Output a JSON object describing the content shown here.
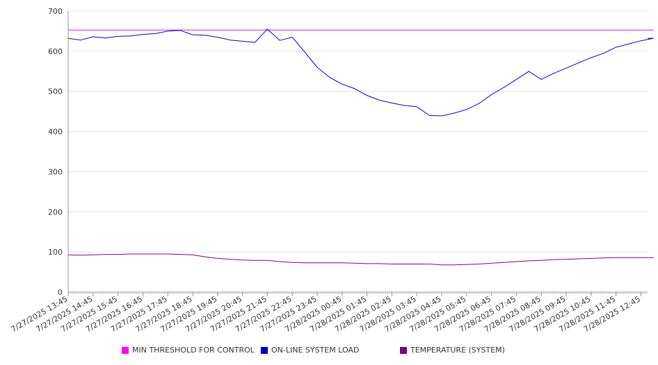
{
  "chart_data": {
    "type": "line",
    "y_ticks": [
      0,
      100,
      200,
      300,
      400,
      500,
      600,
      700
    ],
    "ylim": [
      0,
      700
    ],
    "x_tick_labels": [
      "7/27/2025 13:45",
      "7/27/2025 14:45",
      "7/27/2025 15:45",
      "7/27/2025 16:45",
      "7/27/2025 17:45",
      "7/27/2025 18:45",
      "7/27/2025 19:45",
      "7/27/2025 20:45",
      "7/27/2025 21:45",
      "7/27/2025 22:45",
      "7/27/2025 23:45",
      "7/28/2025 00:45",
      "7/28/2025 01:45",
      "7/28/2025 02:45",
      "7/28/2025 03:45",
      "7/28/2025 04:45",
      "7/28/2025 05:45",
      "7/28/2025 06:45",
      "7/28/2025 07:45",
      "7/28/2025 08:45",
      "7/28/2025 09:45",
      "7/28/2025 10:45",
      "7/28/2025 11:45",
      "7/28/2025 12:45"
    ],
    "x": [
      "7/27/2025 13:45",
      "7/27/2025 14:15",
      "7/27/2025 14:45",
      "7/27/2025 15:15",
      "7/27/2025 15:45",
      "7/27/2025 16:15",
      "7/27/2025 16:45",
      "7/27/2025 17:15",
      "7/27/2025 17:45",
      "7/27/2025 18:15",
      "7/27/2025 18:45",
      "7/27/2025 19:15",
      "7/27/2025 19:45",
      "7/27/2025 20:15",
      "7/27/2025 20:45",
      "7/27/2025 21:15",
      "7/27/2025 21:45",
      "7/27/2025 22:15",
      "7/27/2025 22:45",
      "7/27/2025 23:15",
      "7/27/2025 23:45",
      "7/28/2025 00:15",
      "7/28/2025 00:45",
      "7/28/2025 01:15",
      "7/28/2025 01:45",
      "7/28/2025 02:15",
      "7/28/2025 02:45",
      "7/28/2025 03:15",
      "7/28/2025 03:45",
      "7/28/2025 04:15",
      "7/28/2025 04:45",
      "7/28/2025 05:15",
      "7/28/2025 05:45",
      "7/28/2025 06:15",
      "7/28/2025 06:45",
      "7/28/2025 07:15",
      "7/28/2025 07:45",
      "7/28/2025 08:15",
      "7/28/2025 08:45",
      "7/28/2025 09:15",
      "7/28/2025 09:45",
      "7/28/2025 10:15",
      "7/28/2025 10:45",
      "7/28/2025 11:15",
      "7/28/2025 11:45",
      "7/28/2025 12:15",
      "7/28/2025 12:45",
      "7/28/2025 13:15"
    ],
    "series": [
      {
        "name": "MIN THRESHOLD FOR CONTROL",
        "color": "#ff00ff",
        "values": [
          653,
          653,
          653,
          653,
          653,
          653,
          653,
          653,
          653,
          653,
          653,
          653,
          653,
          653,
          653,
          653,
          653,
          653,
          653,
          653,
          653,
          653,
          653,
          653,
          653,
          653,
          653,
          653,
          653,
          653,
          653,
          653,
          653,
          653,
          653,
          653,
          653,
          653,
          653,
          653,
          653,
          653,
          653,
          653,
          653,
          653,
          653,
          653
        ]
      },
      {
        "name": "ON-LINE SYSTEM LOAD",
        "color": "#0000cc",
        "values": [
          632,
          628,
          636,
          633,
          637,
          638,
          642,
          644,
          650,
          652,
          641,
          640,
          635,
          628,
          625,
          622,
          655,
          627,
          635,
          598,
          560,
          535,
          518,
          507,
          490,
          478,
          471,
          465,
          462,
          440,
          439,
          446,
          455,
          470,
          492,
          510,
          530,
          550,
          530,
          545,
          558,
          571,
          584,
          595,
          610,
          618,
          626,
          632
        ]
      },
      {
        "name": "TEMPERATURE (SYSTEM)",
        "color": "#800080",
        "values": [
          93,
          92,
          93,
          94,
          94,
          95,
          95,
          95,
          95,
          94,
          93,
          88,
          84,
          82,
          80,
          79,
          79,
          76,
          74,
          73,
          73,
          73,
          73,
          72,
          71,
          71,
          70,
          70,
          70,
          70,
          68,
          68,
          69,
          70,
          72,
          74,
          76,
          78,
          79,
          81,
          82,
          83,
          84,
          85,
          86,
          86,
          86,
          86
        ]
      }
    ],
    "legend_position": "bottom",
    "grid": true
  }
}
